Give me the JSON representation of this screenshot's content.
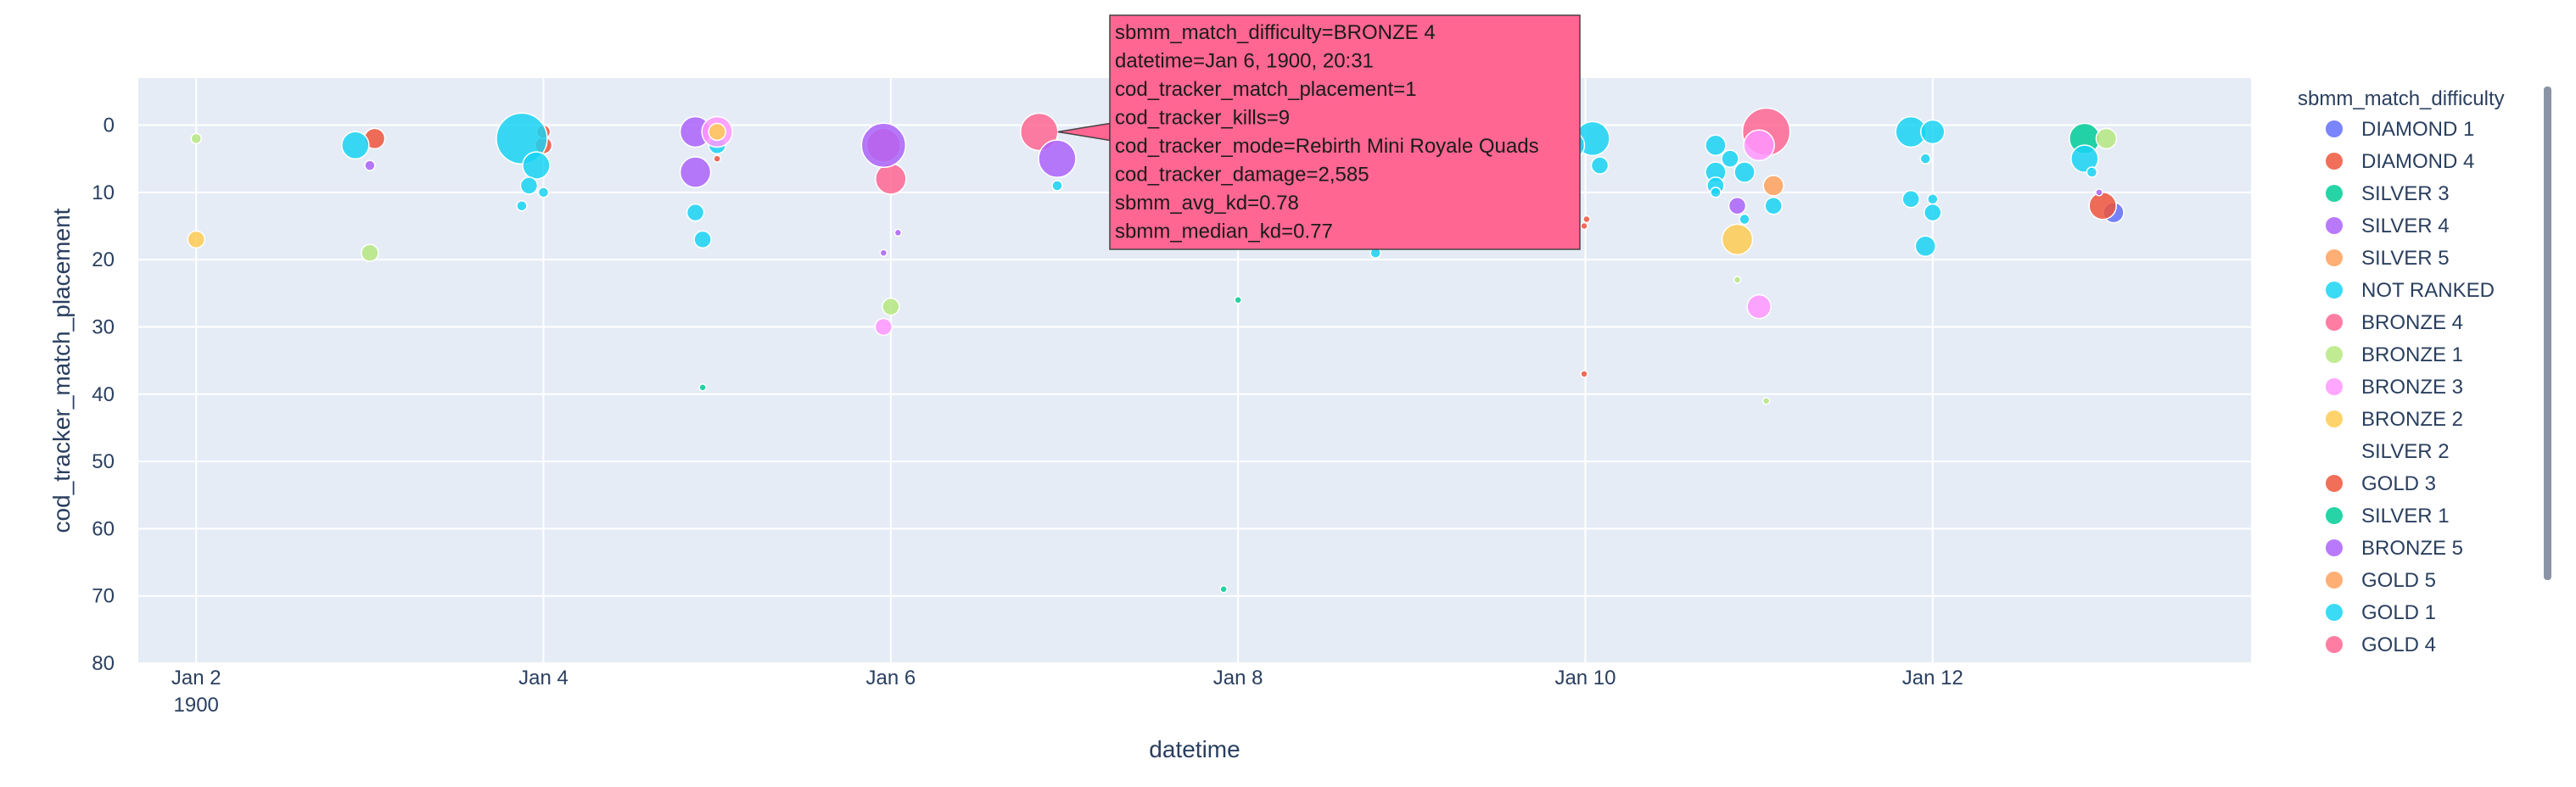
{
  "chart_data": {
    "type": "scatter",
    "xlabel": "datetime",
    "ylabel": "cod_tracker_match_placement",
    "legend_title": "sbmm_match_difficulty",
    "x_range": [
      "1900-01-01T16:00",
      "1900-01-13T20:00"
    ],
    "y_range": [
      -7,
      80
    ],
    "y_reversed": true,
    "y_ticks": [
      0,
      10,
      20,
      30,
      40,
      50,
      60,
      70,
      80
    ],
    "x_ticks": [
      {
        "date": "1900-01-02T00:00",
        "label": "Jan 2",
        "sub": "1900"
      },
      {
        "date": "1900-01-04T00:00",
        "label": "Jan 4",
        "sub": ""
      },
      {
        "date": "1900-01-06T00:00",
        "label": "Jan 6",
        "sub": ""
      },
      {
        "date": "1900-01-08T00:00",
        "label": "Jan 8",
        "sub": ""
      },
      {
        "date": "1900-01-10T00:00",
        "label": "Jan 10",
        "sub": ""
      },
      {
        "date": "1900-01-12T00:00",
        "label": "Jan 12",
        "sub": ""
      }
    ],
    "grid": true,
    "legend_placement": "right",
    "series": [
      {
        "name": "DIAMOND 1",
        "color": "#636efa",
        "points": [
          {
            "x": "1900-01-13T01:00",
            "y": 13,
            "s": 12
          }
        ]
      },
      {
        "name": "DIAMOND 4",
        "color": "#ef553b",
        "points": [
          {
            "x": "1900-01-03T00:40",
            "y": 2,
            "s": 12
          },
          {
            "x": "1900-01-04T00:00",
            "y": 3,
            "s": 10
          },
          {
            "x": "1900-01-04T00:00",
            "y": 1,
            "s": 8
          },
          {
            "x": "1900-01-05T00:00",
            "y": 5,
            "s": 4
          },
          {
            "x": "1900-01-09T23:50",
            "y": 37,
            "s": 4
          },
          {
            "x": "1900-01-10T00:10",
            "y": 14,
            "s": 4
          },
          {
            "x": "1900-01-09T23:50",
            "y": 15,
            "s": 4
          },
          {
            "x": "1900-01-12T23:30",
            "y": 12,
            "s": 16
          }
        ]
      },
      {
        "name": "SILVER 3",
        "color": "#00cc96",
        "points": [
          {
            "x": "1900-01-04T22:00",
            "y": 39,
            "s": 4
          },
          {
            "x": "1900-01-07T22:00",
            "y": 69,
            "s": 4
          },
          {
            "x": "1900-01-08T00:00",
            "y": 26,
            "s": 4
          },
          {
            "x": "1900-01-12T21:00",
            "y": 2,
            "s": 18
          }
        ]
      },
      {
        "name": "SILVER 4",
        "color": "#ab63fa",
        "points": [
          {
            "x": "1900-01-03T00:00",
            "y": 6,
            "s": 6
          },
          {
            "x": "1900-01-04T21:00",
            "y": 1,
            "s": 18
          },
          {
            "x": "1900-01-04T21:00",
            "y": 7,
            "s": 18
          },
          {
            "x": "1900-01-05T23:00",
            "y": 19,
            "s": 4
          },
          {
            "x": "1900-01-06T01:00",
            "y": 16,
            "s": 4
          },
          {
            "x": "1900-01-10T21:00",
            "y": 12,
            "s": 10
          },
          {
            "x": "1900-01-12T23:00",
            "y": 10,
            "s": 4
          }
        ]
      },
      {
        "name": "SILVER 5",
        "color": "#ffa15a",
        "points": [
          {
            "x": "1900-01-11T02:00",
            "y": 9,
            "s": 12
          }
        ]
      },
      {
        "name": "NOT RANKED",
        "color": "#19d3f3",
        "points": [
          {
            "x": "1900-01-02T22:00",
            "y": 3,
            "s": 16
          },
          {
            "x": "1900-01-03T21:00",
            "y": 2,
            "s": 30
          },
          {
            "x": "1900-01-03T23:00",
            "y": 6,
            "s": 16
          },
          {
            "x": "1900-01-03T22:00",
            "y": 9,
            "s": 10
          },
          {
            "x": "1900-01-04T00:00",
            "y": 10,
            "s": 6
          },
          {
            "x": "1900-01-03T21:00",
            "y": 12,
            "s": 6
          },
          {
            "x": "1900-01-05T00:00",
            "y": 3,
            "s": 10
          },
          {
            "x": "1900-01-04T21:00",
            "y": 13,
            "s": 10
          },
          {
            "x": "1900-01-04T22:00",
            "y": 17,
            "s": 10
          },
          {
            "x": "1900-01-06T23:00",
            "y": 9,
            "s": 6
          },
          {
            "x": "1900-01-08T19:00",
            "y": 19,
            "s": 6
          },
          {
            "x": "1900-01-10T01:00",
            "y": 2,
            "s": 20
          },
          {
            "x": "1900-01-09T22:00",
            "y": 3,
            "s": 16
          },
          {
            "x": "1900-01-09T21:00",
            "y": 5,
            "s": 16
          },
          {
            "x": "1900-01-10T02:00",
            "y": 6,
            "s": 10
          },
          {
            "x": "1900-01-09T20:00",
            "y": 8,
            "s": 10
          },
          {
            "x": "1900-01-09T22:00",
            "y": 11,
            "s": 6
          },
          {
            "x": "1900-01-09T19:00",
            "y": 12,
            "s": 6
          },
          {
            "x": "1900-01-10T18:00",
            "y": 3,
            "s": 12
          },
          {
            "x": "1900-01-10T20:00",
            "y": 5,
            "s": 10
          },
          {
            "x": "1900-01-10T18:00",
            "y": 7,
            "s": 12
          },
          {
            "x": "1900-01-10T18:00",
            "y": 9,
            "s": 10
          },
          {
            "x": "1900-01-10T18:00",
            "y": 10,
            "s": 6
          },
          {
            "x": "1900-01-10T22:00",
            "y": 7,
            "s": 12
          },
          {
            "x": "1900-01-10T22:00",
            "y": 14,
            "s": 6
          },
          {
            "x": "1900-01-11T02:00",
            "y": 12,
            "s": 10
          },
          {
            "x": "1900-01-11T21:00",
            "y": 1,
            "s": 18
          },
          {
            "x": "1900-01-12T00:00",
            "y": 1,
            "s": 14
          },
          {
            "x": "1900-01-11T23:00",
            "y": 5,
            "s": 6
          },
          {
            "x": "1900-01-11T21:00",
            "y": 11,
            "s": 10
          },
          {
            "x": "1900-01-12T00:00",
            "y": 11,
            "s": 6
          },
          {
            "x": "1900-01-12T00:00",
            "y": 13,
            "s": 10
          },
          {
            "x": "1900-01-11T23:00",
            "y": 18,
            "s": 12
          },
          {
            "x": "1900-01-12T21:00",
            "y": 5,
            "s": 16
          },
          {
            "x": "1900-01-12T22:00",
            "y": 7,
            "s": 6
          }
        ]
      },
      {
        "name": "BRONZE 4",
        "color": "#ff6692",
        "points": [
          {
            "x": "1900-01-05T23:00",
            "y": 3,
            "s": 20
          },
          {
            "x": "1900-01-06T00:00",
            "y": 8,
            "s": 18
          },
          {
            "x": "1900-01-06T20:31",
            "y": 1,
            "s": 22
          },
          {
            "x": "1900-01-11T01:00",
            "y": 1,
            "s": 28
          }
        ]
      },
      {
        "name": "BRONZE 1",
        "color": "#b6e880",
        "points": [
          {
            "x": "1900-01-02T00:00",
            "y": 2,
            "s": 6
          },
          {
            "x": "1900-01-03T00:00",
            "y": 19,
            "s": 10
          },
          {
            "x": "1900-01-06T00:00",
            "y": 27,
            "s": 10
          },
          {
            "x": "1900-01-10T21:00",
            "y": 23,
            "s": 4
          },
          {
            "x": "1900-01-11T01:00",
            "y": 41,
            "s": 4
          },
          {
            "x": "1900-01-13T00:00",
            "y": 2,
            "s": 12
          }
        ]
      },
      {
        "name": "BRONZE 3",
        "color": "#ff97ff",
        "points": [
          {
            "x": "1900-01-05T00:00",
            "y": 1,
            "s": 18
          },
          {
            "x": "1900-01-05T23:00",
            "y": 30,
            "s": 10
          },
          {
            "x": "1900-01-11T00:00",
            "y": 3,
            "s": 18
          },
          {
            "x": "1900-01-11T00:00",
            "y": 27,
            "s": 14
          }
        ]
      },
      {
        "name": "BRONZE 2",
        "color": "#fecb52",
        "points": [
          {
            "x": "1900-01-02T00:00",
            "y": 17,
            "s": 10
          },
          {
            "x": "1900-01-05T00:00",
            "y": 1,
            "s": 10
          },
          {
            "x": "1900-01-10T21:00",
            "y": 17,
            "s": 18
          }
        ]
      },
      {
        "name": "SILVER 2",
        "color": "#636efa",
        "legend_marker": false,
        "points": []
      },
      {
        "name": "GOLD 3",
        "color": "#ef553b",
        "points": []
      },
      {
        "name": "SILVER 1",
        "color": "#00cc96",
        "points": []
      },
      {
        "name": "BRONZE 5",
        "color": "#ab63fa",
        "points": [
          {
            "x": "1900-01-06T23:00",
            "y": 5,
            "s": 22
          },
          {
            "x": "1900-01-05T23:00",
            "y": 3,
            "s": 26
          }
        ]
      },
      {
        "name": "GOLD 5",
        "color": "#ffa15a",
        "points": []
      },
      {
        "name": "GOLD 1",
        "color": "#19d3f3",
        "points": []
      },
      {
        "name": "GOLD 4",
        "color": "#ff6692",
        "points": []
      }
    ]
  },
  "tooltip": {
    "color": "#ff6692",
    "lines": [
      "sbmm_match_difficulty=BRONZE 4",
      "datetime=Jan 6, 1900, 20:31",
      "cod_tracker_match_placement=1",
      "cod_tracker_kills=9",
      "cod_tracker_mode=Rebirth Mini Royale Quads",
      "cod_tracker_damage=2,585",
      "sbmm_avg_kd=0.78",
      "sbmm_median_kd=0.77"
    ]
  }
}
